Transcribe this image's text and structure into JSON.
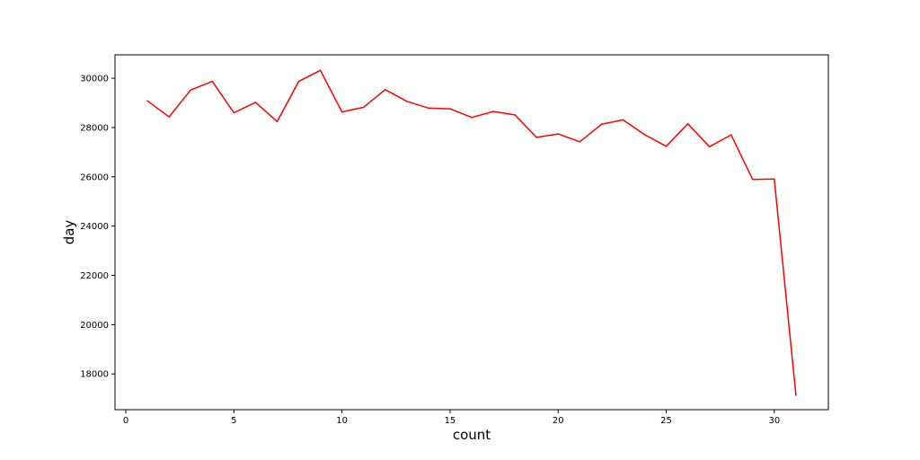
{
  "chart_data": {
    "type": "line",
    "title": "",
    "xlabel": "count",
    "ylabel": "day",
    "xlim": [
      -0.5,
      32.5
    ],
    "ylim": [
      16550,
      30950
    ],
    "x_ticks": [
      0,
      5,
      10,
      15,
      20,
      25,
      30
    ],
    "y_ticks": [
      18000,
      20000,
      22000,
      24000,
      26000,
      28000,
      30000
    ],
    "grid": false,
    "legend": "none",
    "series": [
      {
        "color": "#ff0000",
        "x": [
          1,
          2,
          3,
          4,
          5,
          6,
          7,
          8,
          9,
          10,
          11,
          12,
          13,
          14,
          15,
          16,
          17,
          18,
          19,
          20,
          21,
          22,
          23,
          24,
          25,
          26,
          27,
          28,
          29,
          30,
          31
        ],
        "values": [
          29080,
          28430,
          29520,
          29870,
          28600,
          29020,
          28240,
          29870,
          30320,
          28630,
          28820,
          29540,
          29060,
          28790,
          28760,
          28410,
          28650,
          28510,
          27600,
          27740,
          27420,
          28130,
          28310,
          27710,
          27240,
          28150,
          27220,
          27700,
          25890,
          25910,
          17140
        ]
      }
    ]
  }
}
